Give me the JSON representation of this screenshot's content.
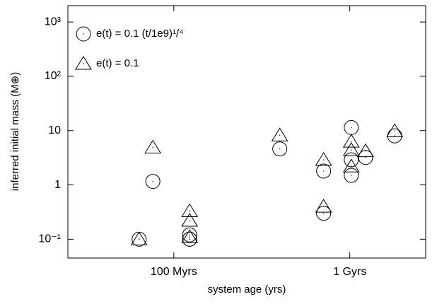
{
  "chart_data": {
    "type": "scatter",
    "xlabel": "system age (yrs)",
    "ylabel": "inferred initial mass (M⊕)",
    "xlog": true,
    "ylog": true,
    "xlim": [
      25000000.0,
      2700000000.0
    ],
    "ylim": [
      0.045,
      2000
    ],
    "xticks": [
      {
        "value": 100000000.0,
        "label": "100 Myrs"
      },
      {
        "value": 1000000000.0,
        "label": "1 Gyrs"
      }
    ],
    "yticks": [
      {
        "value": 0.1,
        "label": "10⁻¹"
      },
      1,
      10,
      {
        "value": 100,
        "label": "10²"
      },
      {
        "value": 1000,
        "label": "10³"
      }
    ],
    "legend": "upper left",
    "series": [
      {
        "name": "e(t) = 0.1 (t/1e9)¹/⁴",
        "marker": "circle",
        "color": "#000000",
        "x": [
          63500000.0,
          76000000.0,
          123000000.0,
          123000000.0,
          123000000.0,
          400000000.0,
          710000000.0,
          710000000.0,
          1020000000.0,
          1020000000.0,
          1020000000.0,
          1230000000.0,
          1800000000.0
        ],
        "values": [
          0.1,
          1.16,
          0.12,
          0.1,
          0.1,
          4.6,
          1.8,
          0.3,
          11.4,
          2.9,
          1.5,
          3.2,
          8.0
        ]
      },
      {
        "name": "e(t) = 0.1",
        "marker": "triangle",
        "color": "#000000",
        "x": [
          63500000.0,
          76000000.0,
          123000000.0,
          123000000.0,
          123000000.0,
          400000000.0,
          710000000.0,
          710000000.0,
          1020000000.0,
          1020000000.0,
          1020000000.0,
          1230000000.0,
          1800000000.0
        ],
        "values": [
          0.1,
          4.9,
          0.33,
          0.22,
          0.11,
          8.2,
          2.9,
          0.4,
          6.3,
          4.4,
          2.2,
          4.2,
          9.8
        ]
      }
    ]
  }
}
